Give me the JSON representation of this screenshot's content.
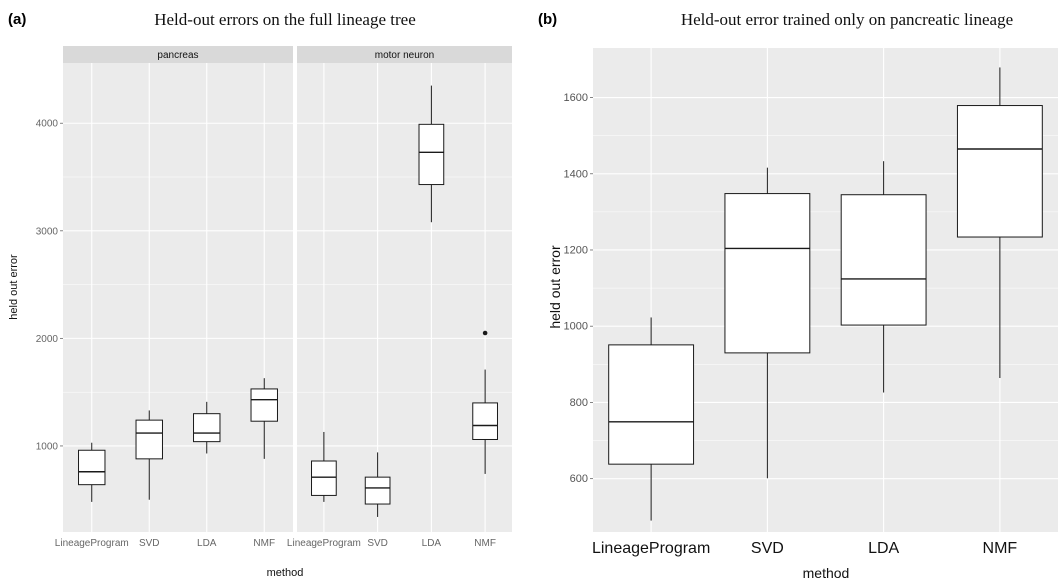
{
  "panel_a": {
    "letter": "(a)",
    "title": "Held-out errors on the full lineage tree"
  },
  "panel_b": {
    "letter": "(b)",
    "title": "Held-out error trained only on pancreatic lineage"
  },
  "colors": {
    "panel_bg": "#ebebeb",
    "strip_bg": "#d9d9d9",
    "grid": "#ffffff",
    "box_fill": "#ffffff",
    "box_line": "#1a1a1a"
  },
  "chart_data": [
    {
      "type": "box",
      "facets": [
        {
          "strip_label": "pancreas",
          "categories": [
            "LineageProgram",
            "SVD",
            "LDA",
            "NMF"
          ],
          "boxes": [
            {
              "whisker_low": 480,
              "q1": 640,
              "median": 760,
              "q3": 960,
              "whisker_high": 1030,
              "outliers": []
            },
            {
              "whisker_low": 500,
              "q1": 880,
              "median": 1120,
              "q3": 1240,
              "whisker_high": 1330,
              "outliers": []
            },
            {
              "whisker_low": 930,
              "q1": 1040,
              "median": 1120,
              "q3": 1300,
              "whisker_high": 1410,
              "outliers": []
            },
            {
              "whisker_low": 880,
              "q1": 1230,
              "median": 1430,
              "q3": 1530,
              "whisker_high": 1630,
              "outliers": []
            }
          ]
        },
        {
          "strip_label": "motor neuron",
          "categories": [
            "LineageProgram",
            "SVD",
            "LDA",
            "NMF"
          ],
          "boxes": [
            {
              "whisker_low": 480,
              "q1": 540,
              "median": 710,
              "q3": 860,
              "whisker_high": 1130,
              "outliers": []
            },
            {
              "whisker_low": 340,
              "q1": 460,
              "median": 610,
              "q3": 710,
              "whisker_high": 940,
              "outliers": []
            },
            {
              "whisker_low": 3080,
              "q1": 3430,
              "median": 3730,
              "q3": 3990,
              "whisker_high": 4350,
              "outliers": []
            },
            {
              "whisker_low": 740,
              "q1": 1060,
              "median": 1190,
              "q3": 1400,
              "whisker_high": 1710,
              "outliers": [
                2050
              ]
            }
          ]
        }
      ],
      "xlabel": "method",
      "ylabel": "held out error",
      "yticks": [
        1000,
        2000,
        3000,
        4000
      ],
      "ylim": [
        200,
        4560
      ],
      "grid": true
    },
    {
      "type": "box",
      "categories": [
        "LineageProgram",
        "SVD",
        "LDA",
        "NMF"
      ],
      "boxes": [
        {
          "whisker_low": 490,
          "q1": 638,
          "median": 749,
          "q3": 951,
          "whisker_high": 1023,
          "outliers": []
        },
        {
          "whisker_low": 601,
          "q1": 930,
          "median": 1204,
          "q3": 1348,
          "whisker_high": 1416,
          "outliers": []
        },
        {
          "whisker_low": 826,
          "q1": 1003,
          "median": 1124,
          "q3": 1345,
          "whisker_high": 1433,
          "outliers": []
        },
        {
          "whisker_low": 864,
          "q1": 1234,
          "median": 1465,
          "q3": 1579,
          "whisker_high": 1679,
          "outliers": []
        }
      ],
      "xlabel": "method",
      "ylabel": "held out error",
      "yticks": [
        600,
        800,
        1000,
        1200,
        1400,
        1600
      ],
      "ylim": [
        460,
        1730
      ],
      "grid": true
    }
  ]
}
